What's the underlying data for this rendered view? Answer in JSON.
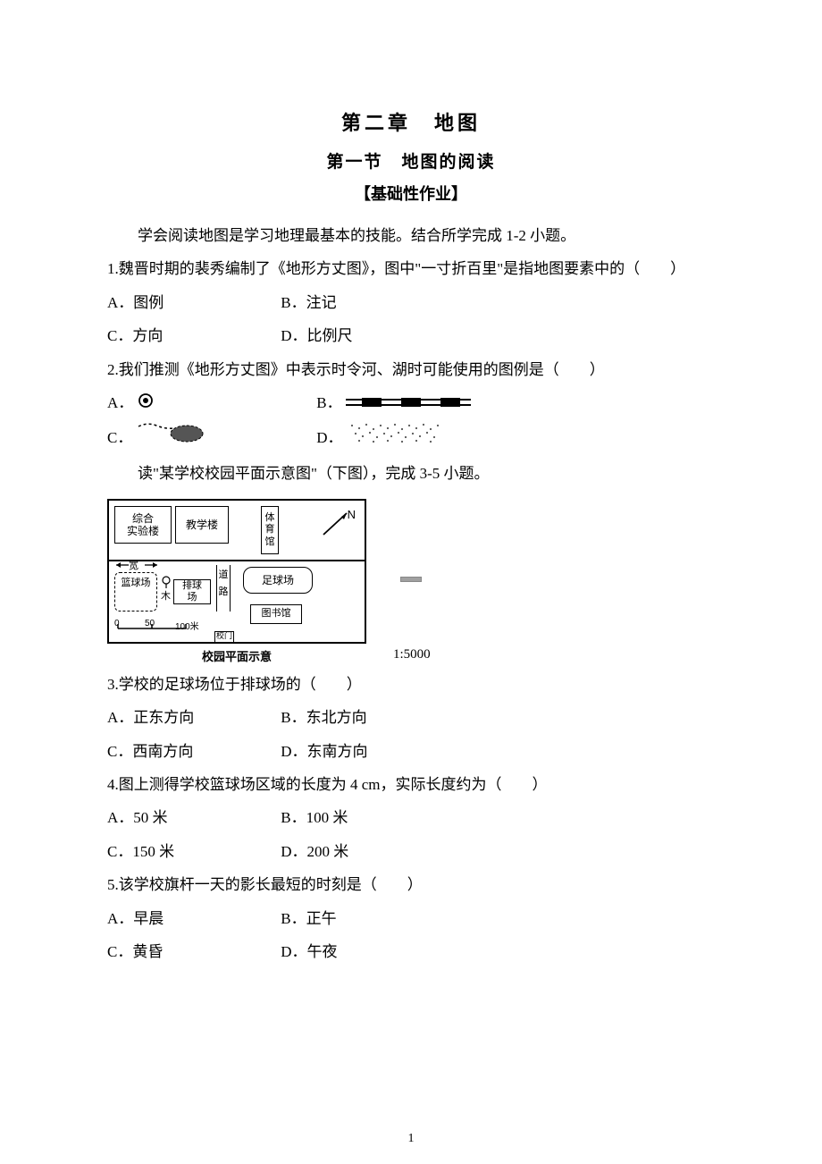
{
  "titles": {
    "chapter": "第二章　地图",
    "section": "第一节　地图的阅读",
    "subsection": "【基础性作业】"
  },
  "intro1": "学会阅读地图是学习地理最基本的技能。结合所学完成 1-2 小题。",
  "q1": {
    "stem": "1.魏晋时期的裴秀编制了《地形方丈图》，图中\"一寸折百里\"是指地图要素中的（　　）",
    "a": "A．图例",
    "b": "B．注记",
    "c": "C．方向",
    "d": "D．比例尺"
  },
  "q2": {
    "stem": "2.我们推测《地形方丈图》中表示时令河、湖时可能使用的图例是（　　）",
    "a": "A．",
    "b": "B．",
    "c": "C．",
    "d": "D．"
  },
  "intro2": "读\"某学校校园平面示意图\"（下图），完成 3-5 小题。",
  "figure": {
    "blocks": {
      "lab": "综合\n实验楼",
      "teach": "教学楼",
      "gym": "体育馆",
      "basket": "篮球场",
      "wide": "宽",
      "tree": "木",
      "volley": "排球场",
      "road1": "道",
      "road2": "路",
      "foot": "足球场",
      "lib": "图书馆",
      "gate": "校门"
    },
    "north": "N",
    "scale_labels": [
      "0",
      "50",
      "100米"
    ],
    "caption": "校园平面示意",
    "ratio": "1:5000"
  },
  "q3": {
    "stem": "3.学校的足球场位于排球场的（　　）",
    "a": "A．正东方向",
    "b": "B．东北方向",
    "c": "C．西南方向",
    "d": "D．东南方向"
  },
  "q4": {
    "stem": "4.图上测得学校篮球场区域的长度为 4 cm，实际长度约为（　　）",
    "a": "A．50 米",
    "b": "B．100 米",
    "c": "C．150 米",
    "d": "D．200 米"
  },
  "q5": {
    "stem": "5.该学校旗杆一天的影长最短的时刻是（　　）",
    "a": "A．早晨",
    "b": "B．正午",
    "c": "C．黄昏",
    "d": "D．午夜"
  },
  "pagenum": "1",
  "colors": {
    "text": "#000000",
    "bg": "#ffffff",
    "handle": "#a0a0a0"
  }
}
